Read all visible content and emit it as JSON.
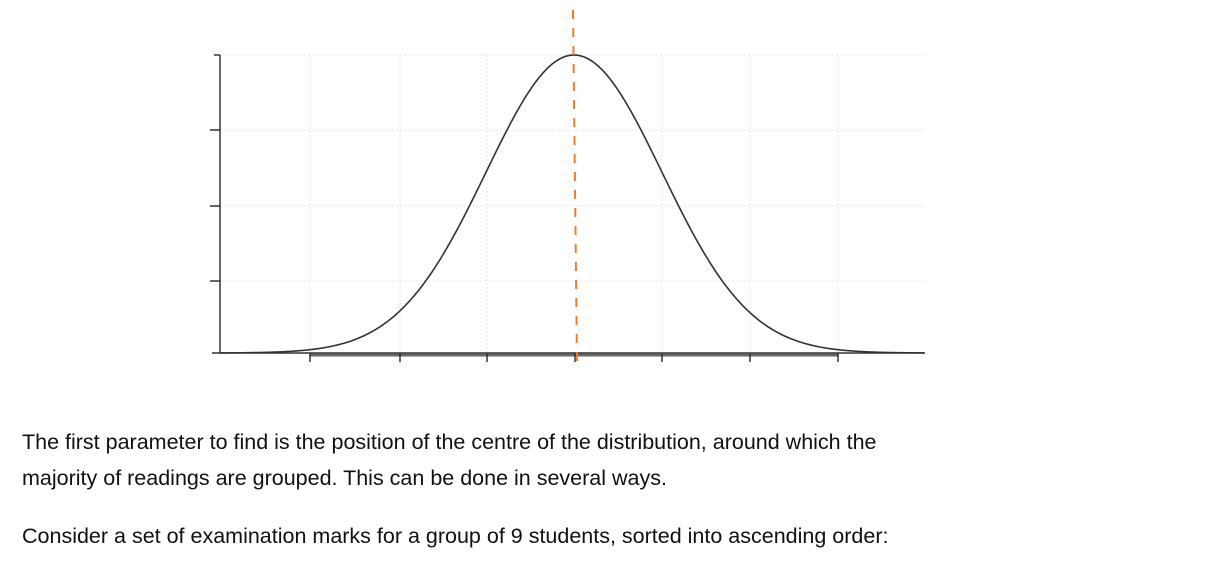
{
  "paragraphs": [
    {
      "lines": [
        "The first parameter to find is the position of the centre of the distribution, around which the",
        "majority of readings are grouped.  This can be done in several ways."
      ]
    },
    {
      "lines": [
        "Consider a set of examination marks for a group of 9 students, sorted into ascending order:"
      ]
    }
  ]
}
